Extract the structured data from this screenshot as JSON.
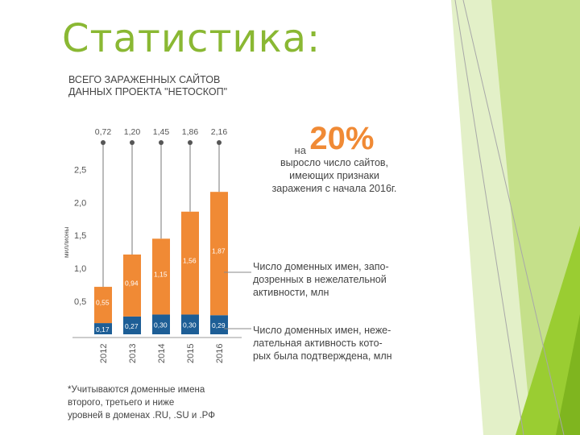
{
  "slide": {
    "title": "Статистика:",
    "subtitle_lines": [
      "ВСЕГО ЗАРАЖЕННЫХ САЙТОВ",
      "ДАННЫХ ПРОЕКТА \"НЕТОСКОП\""
    ],
    "callout": {
      "prefix": "на",
      "value": "20%",
      "lines": [
        "выросло число сайтов,",
        "имеющих признаки",
        "заражения с начала 2016г."
      ]
    },
    "legend_top_lines": [
      "Число доменных имен, запо-",
      "дозренных в нежелательной",
      "активности, млн"
    ],
    "legend_bottom_lines": [
      "Число доменных имен, неже-",
      "лательная активность кото-",
      "рых была подтверждена, млн"
    ],
    "footnote_lines": [
      "*Учитываются доменные имена",
      "второго, третьего и ниже",
      "уровней в доменах .RU, .SU и .РФ"
    ],
    "colors": {
      "title": "#8ab833",
      "orange": "#f08a35",
      "blue": "#1d5e96",
      "green_deco": "#9acd32"
    }
  },
  "chart_data": {
    "type": "bar",
    "stacked": true,
    "categories": [
      "2012",
      "2013",
      "2014",
      "2015",
      "2016"
    ],
    "totals": [
      "0,72",
      "1,20",
      "1,45",
      "1,86",
      "2,16"
    ],
    "series": [
      {
        "values": [
          0.17,
          0.27,
          0.3,
          0.3,
          0.29
        ],
        "labels": [
          "0,17",
          "0,27",
          "0,30",
          "0,30",
          "0,29"
        ],
        "color": "#1d5e96"
      },
      {
        "values": [
          0.55,
          0.94,
          1.15,
          1.56,
          1.87
        ],
        "labels": [
          "0,55",
          "0,94",
          "1,15",
          "1,56",
          "1,87"
        ],
        "color": "#f08a35"
      }
    ],
    "ylabel": "миллионы",
    "ylim": [
      0,
      2.8
    ],
    "yticks": [
      0.5,
      1.0,
      1.5,
      2.0,
      2.5
    ],
    "ytick_labels": [
      "0,5",
      "1,0",
      "1,5",
      "2,0",
      "2,5"
    ]
  }
}
